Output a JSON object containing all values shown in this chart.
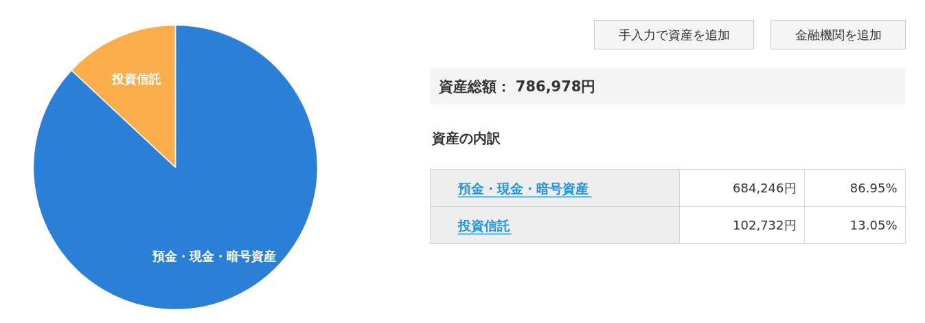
{
  "chart_data": {
    "type": "pie",
    "title": "資産総額： 786,978円",
    "subtitle": "資産の内訳",
    "categories": [
      "預金・現金・暗号資産",
      "投資信託"
    ],
    "values": [
      86.95,
      13.05
    ],
    "colors": [
      "#2a80d7",
      "#fbae4b"
    ],
    "annotations": [
      "手入力で資産を追加",
      "金融機関を追加",
      {
        "text": "684,246円",
        "x": "預金・現金・暗号資産"
      },
      {
        "text": "86.95%",
        "x": "預金・現金・暗号資産"
      },
      {
        "text": "102,732円",
        "x": "投資信託"
      },
      {
        "text": "13.05%",
        "x": "投資信託"
      }
    ]
  }
}
